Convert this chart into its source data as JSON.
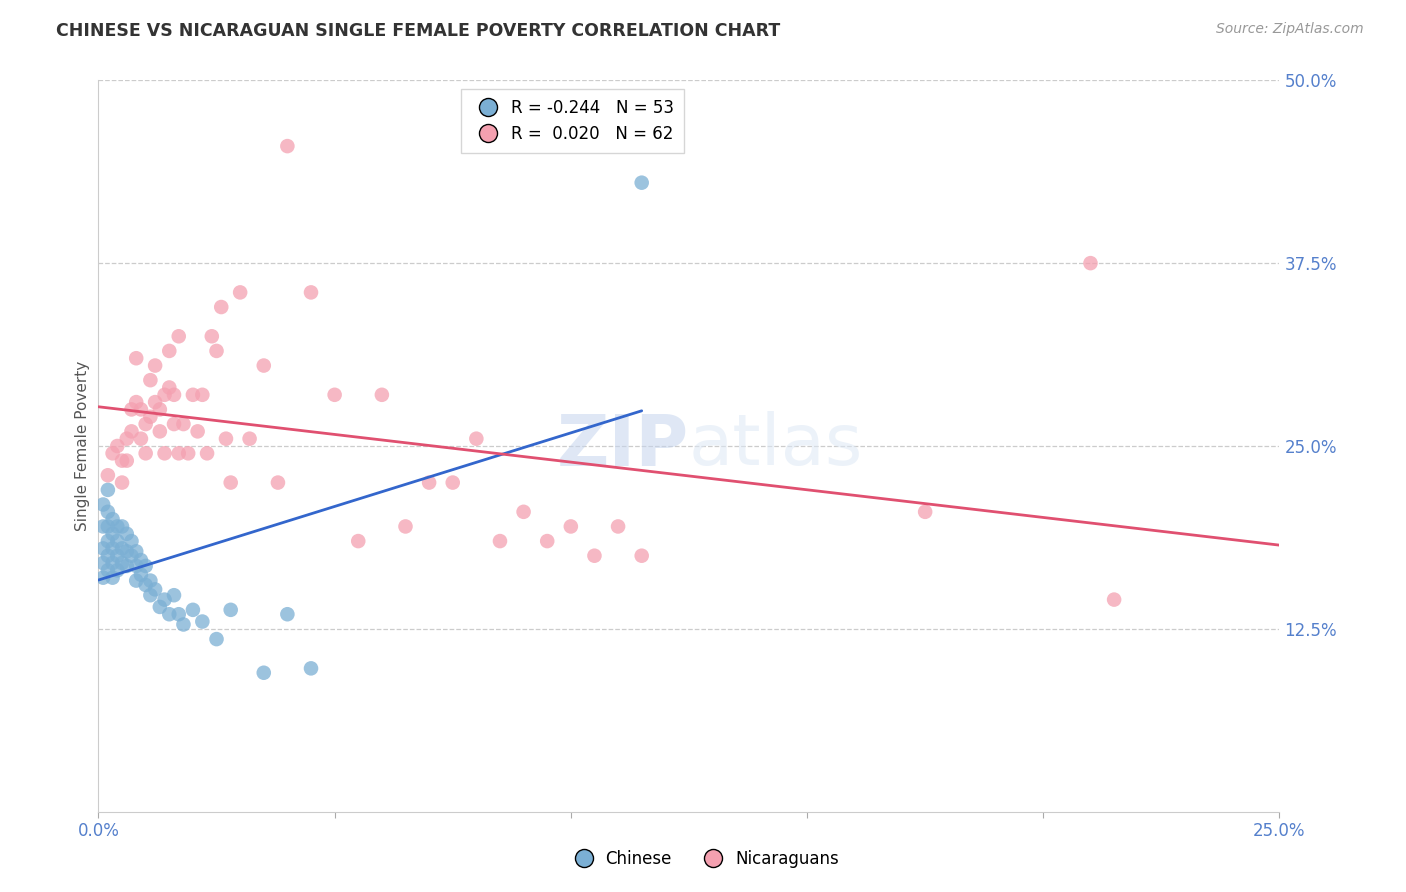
{
  "title": "CHINESE VS NICARAGUAN SINGLE FEMALE POVERTY CORRELATION CHART",
  "source": "Source: ZipAtlas.com",
  "ylabel": "Single Female Poverty",
  "xlim": [
    0.0,
    0.25
  ],
  "ylim": [
    0.0,
    0.5
  ],
  "x_ticks": [
    0.0,
    0.05,
    0.1,
    0.15,
    0.2,
    0.25
  ],
  "x_tick_labels": [
    "0.0%",
    "",
    "",
    "",
    "",
    "25.0%"
  ],
  "y_tick_labels_right": [
    "50.0%",
    "37.5%",
    "25.0%",
    "12.5%"
  ],
  "y_tick_values_right": [
    0.5,
    0.375,
    0.25,
    0.125
  ],
  "chinese_R": -0.244,
  "chinese_N": 53,
  "nicaraguan_R": 0.02,
  "nicaraguan_N": 62,
  "chinese_color": "#7bafd4",
  "nicaraguan_color": "#f4a0b0",
  "chinese_line_color": "#3366cc",
  "nicaraguan_line_color": "#e05070",
  "watermark": "ZIPatlas",
  "chinese_x": [
    0.001,
    0.001,
    0.001,
    0.001,
    0.001,
    0.002,
    0.002,
    0.002,
    0.002,
    0.002,
    0.002,
    0.003,
    0.003,
    0.003,
    0.003,
    0.003,
    0.004,
    0.004,
    0.004,
    0.004,
    0.005,
    0.005,
    0.005,
    0.006,
    0.006,
    0.006,
    0.007,
    0.007,
    0.008,
    0.008,
    0.008,
    0.009,
    0.009,
    0.01,
    0.01,
    0.011,
    0.011,
    0.012,
    0.013,
    0.014,
    0.015,
    0.016,
    0.017,
    0.018,
    0.02,
    0.022,
    0.025,
    0.028,
    0.035,
    0.04,
    0.045,
    0.115
  ],
  "chinese_y": [
    0.21,
    0.195,
    0.18,
    0.17,
    0.16,
    0.22,
    0.205,
    0.195,
    0.185,
    0.175,
    0.165,
    0.2,
    0.19,
    0.18,
    0.17,
    0.16,
    0.195,
    0.185,
    0.175,
    0.165,
    0.195,
    0.18,
    0.17,
    0.19,
    0.178,
    0.168,
    0.185,
    0.175,
    0.178,
    0.168,
    0.158,
    0.172,
    0.162,
    0.168,
    0.155,
    0.158,
    0.148,
    0.152,
    0.14,
    0.145,
    0.135,
    0.148,
    0.135,
    0.128,
    0.138,
    0.13,
    0.118,
    0.138,
    0.095,
    0.135,
    0.098,
    0.43
  ],
  "nicaraguan_x": [
    0.002,
    0.003,
    0.004,
    0.005,
    0.005,
    0.006,
    0.006,
    0.007,
    0.007,
    0.008,
    0.008,
    0.009,
    0.009,
    0.01,
    0.01,
    0.011,
    0.011,
    0.012,
    0.012,
    0.013,
    0.013,
    0.014,
    0.014,
    0.015,
    0.015,
    0.016,
    0.016,
    0.017,
    0.017,
    0.018,
    0.019,
    0.02,
    0.021,
    0.022,
    0.023,
    0.024,
    0.025,
    0.026,
    0.027,
    0.028,
    0.03,
    0.032,
    0.035,
    0.038,
    0.04,
    0.045,
    0.05,
    0.055,
    0.06,
    0.065,
    0.07,
    0.075,
    0.08,
    0.085,
    0.09,
    0.095,
    0.1,
    0.105,
    0.11,
    0.115,
    0.175,
    0.21,
    0.215
  ],
  "nicaraguan_y": [
    0.23,
    0.245,
    0.25,
    0.24,
    0.225,
    0.255,
    0.24,
    0.275,
    0.26,
    0.31,
    0.28,
    0.275,
    0.255,
    0.265,
    0.245,
    0.295,
    0.27,
    0.305,
    0.28,
    0.275,
    0.26,
    0.285,
    0.245,
    0.315,
    0.29,
    0.285,
    0.265,
    0.325,
    0.245,
    0.265,
    0.245,
    0.285,
    0.26,
    0.285,
    0.245,
    0.325,
    0.315,
    0.345,
    0.255,
    0.225,
    0.355,
    0.255,
    0.305,
    0.225,
    0.455,
    0.355,
    0.285,
    0.185,
    0.285,
    0.195,
    0.225,
    0.225,
    0.255,
    0.185,
    0.205,
    0.185,
    0.195,
    0.175,
    0.195,
    0.175,
    0.205,
    0.375,
    0.145
  ]
}
